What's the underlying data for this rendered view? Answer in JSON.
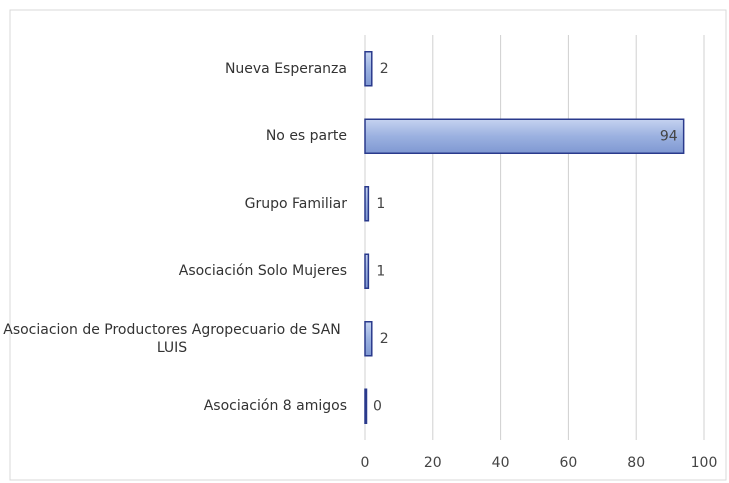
{
  "chart_data": {
    "type": "hbar",
    "categories": [
      "Nueva Esperanza",
      "No es parte",
      "Grupo Familiar",
      "Asociación Solo Mujeres",
      "Asociacion de Productores Agropecuario de SAN LUIS",
      "Asociación 8 amigos"
    ],
    "values": [
      2,
      94,
      1,
      1,
      2,
      0
    ],
    "color": "#9bb1e0",
    "edge": "#2a3a8c",
    "xlim": [
      0,
      100
    ],
    "xticks": [
      0,
      20,
      40,
      60,
      80,
      100
    ],
    "grid": true
  }
}
